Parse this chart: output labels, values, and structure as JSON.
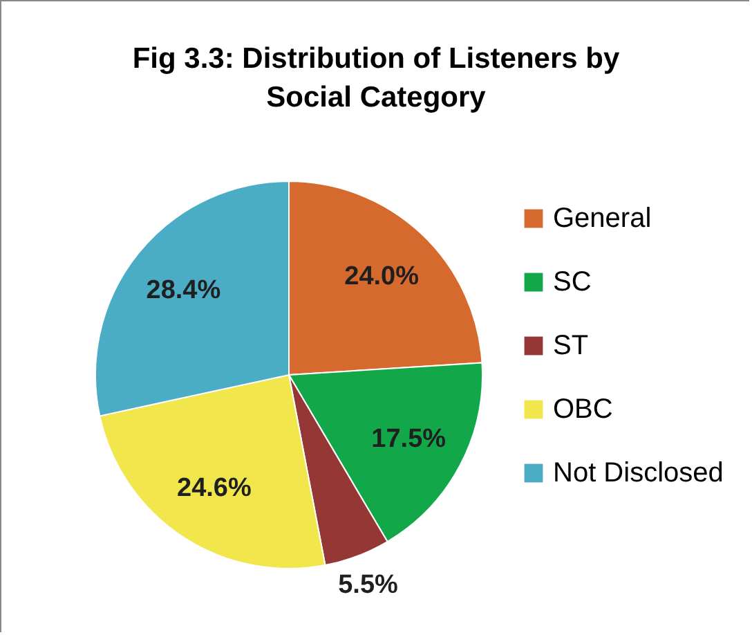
{
  "chart_data": {
    "type": "pie",
    "title": "Fig 3.3: Distribution of Listeners by Social Category",
    "categories": [
      "General",
      "SC",
      "ST",
      "OBC",
      "Not Disclosed"
    ],
    "values": [
      24.0,
      17.5,
      5.5,
      24.6,
      28.4
    ],
    "colors": [
      "#d5692e",
      "#12a84a",
      "#953735",
      "#f1e64b",
      "#4bacc6"
    ],
    "value_labels": [
      "24.0%",
      "17.5%",
      "5.5%",
      "24.6%",
      "28.4%"
    ],
    "legend": "right"
  }
}
